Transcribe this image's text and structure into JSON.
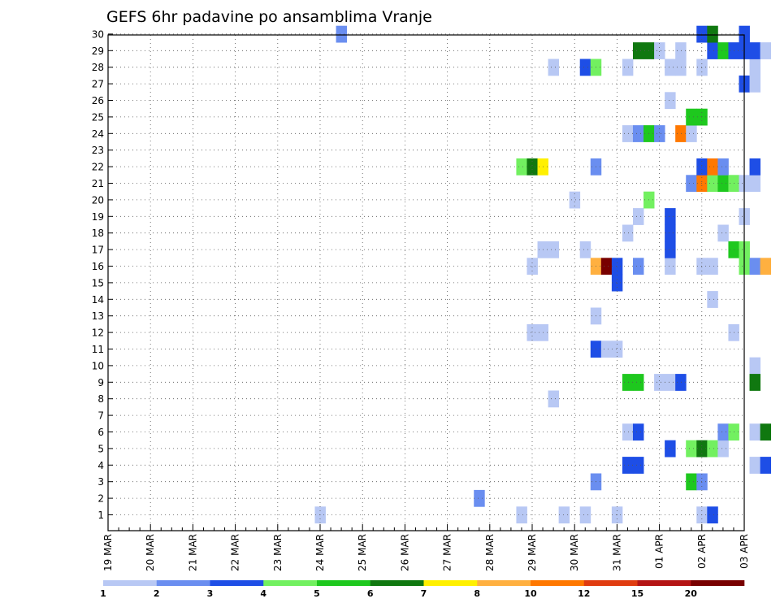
{
  "chart_data": {
    "type": "heatmap",
    "title": "GEFS 6hr padavine po ansamblima Vranje",
    "xlabel": "",
    "ylabel": "",
    "x_tick_labels": [
      "19 MAR",
      "20 MAR",
      "21 MAR",
      "22 MAR",
      "23 MAR",
      "24 MAR",
      "25 MAR",
      "26 MAR",
      "27 MAR",
      "28 MAR",
      "29 MAR",
      "30 MAR",
      "31 MAR",
      "01 APR",
      "02 APR",
      "03 APR"
    ],
    "y_range": [
      1,
      30
    ],
    "grid": true,
    "legend_position": "bottom",
    "legend": {
      "colors": [
        "#b8c8f4",
        "#6a8ef0",
        "#1e4ee6",
        "#72f060",
        "#1ec81e",
        "#107810",
        "#fff000",
        "#ffb040",
        "#ff7800",
        "#e03c10",
        "#b41414",
        "#780000"
      ],
      "labels": [
        "1",
        "2",
        "3",
        "4",
        "5",
        "6",
        "7",
        "8",
        "10",
        "12",
        "15",
        "20"
      ]
    },
    "cells": [
      {
        "d": 5.0,
        "m": 1,
        "c": 1
      },
      {
        "d": 5.5,
        "m": 30,
        "c": 2
      },
      {
        "d": 8.75,
        "m": 2,
        "c": 2
      },
      {
        "d": 9.75,
        "m": 1,
        "c": 1
      },
      {
        "d": 10.0,
        "m": 12,
        "c": 1
      },
      {
        "d": 10.25,
        "m": 12,
        "c": 1
      },
      {
        "d": 10.25,
        "m": 17,
        "c": 1
      },
      {
        "d": 10.5,
        "m": 17,
        "c": 1
      },
      {
        "d": 10.0,
        "m": 16,
        "c": 1
      },
      {
        "d": 9.75,
        "m": 22,
        "c": 4
      },
      {
        "d": 10.0,
        "m": 22,
        "c": 6
      },
      {
        "d": 10.25,
        "m": 22,
        "c": 7
      },
      {
        "d": 10.5,
        "m": 8,
        "c": 1
      },
      {
        "d": 10.5,
        "m": 28,
        "c": 1
      },
      {
        "d": 10.75,
        "m": 1,
        "c": 1
      },
      {
        "d": 11.0,
        "m": 20,
        "c": 1
      },
      {
        "d": 11.25,
        "m": 1,
        "c": 1
      },
      {
        "d": 11.25,
        "m": 17,
        "c": 1
      },
      {
        "d": 11.25,
        "m": 28,
        "c": 3
      },
      {
        "d": 11.5,
        "m": 3,
        "c": 2
      },
      {
        "d": 11.5,
        "m": 11,
        "c": 3
      },
      {
        "d": 11.5,
        "m": 13,
        "c": 1
      },
      {
        "d": 11.5,
        "m": 22,
        "c": 2
      },
      {
        "d": 11.5,
        "m": 28,
        "c": 4
      },
      {
        "d": 11.5,
        "m": 16,
        "c": 8
      },
      {
        "d": 11.75,
        "m": 11,
        "c": 1
      },
      {
        "d": 11.75,
        "m": 16,
        "c": 12
      },
      {
        "d": 12.0,
        "m": 1,
        "c": 1
      },
      {
        "d": 12.0,
        "m": 11,
        "c": 1
      },
      {
        "d": 12.0,
        "m": 15,
        "c": 3
      },
      {
        "d": 12.0,
        "m": 16,
        "c": 3
      },
      {
        "d": 12.25,
        "m": 4,
        "c": 3
      },
      {
        "d": 12.25,
        "m": 6,
        "c": 1
      },
      {
        "d": 12.25,
        "m": 9,
        "c": 5
      },
      {
        "d": 12.25,
        "m": 18,
        "c": 1
      },
      {
        "d": 12.25,
        "m": 24,
        "c": 1
      },
      {
        "d": 12.25,
        "m": 28,
        "c": 1
      },
      {
        "d": 12.5,
        "m": 4,
        "c": 3
      },
      {
        "d": 12.5,
        "m": 6,
        "c": 3
      },
      {
        "d": 12.5,
        "m": 9,
        "c": 5
      },
      {
        "d": 12.5,
        "m": 16,
        "c": 2
      },
      {
        "d": 12.5,
        "m": 19,
        "c": 1
      },
      {
        "d": 12.5,
        "m": 24,
        "c": 2
      },
      {
        "d": 12.5,
        "m": 29,
        "c": 6
      },
      {
        "d": 12.75,
        "m": 20,
        "c": 4
      },
      {
        "d": 12.75,
        "m": 24,
        "c": 5
      },
      {
        "d": 12.75,
        "m": 29,
        "c": 6
      },
      {
        "d": 13.0,
        "m": 9,
        "c": 1
      },
      {
        "d": 13.0,
        "m": 24,
        "c": 2
      },
      {
        "d": 13.0,
        "m": 29,
        "c": 1
      },
      {
        "d": 13.25,
        "m": 5,
        "c": 3
      },
      {
        "d": 13.25,
        "m": 9,
        "c": 1
      },
      {
        "d": 13.25,
        "m": 16,
        "c": 1
      },
      {
        "d": 13.25,
        "m": 17,
        "c": 3
      },
      {
        "d": 13.25,
        "m": 18,
        "c": 3
      },
      {
        "d": 13.25,
        "m": 19,
        "c": 3
      },
      {
        "d": 13.25,
        "m": 26,
        "c": 1
      },
      {
        "d": 13.25,
        "m": 28,
        "c": 1
      },
      {
        "d": 13.5,
        "m": 9,
        "c": 3
      },
      {
        "d": 13.5,
        "m": 24,
        "c": 9
      },
      {
        "d": 13.5,
        "m": 28,
        "c": 1
      },
      {
        "d": 13.5,
        "m": 29,
        "c": 1
      },
      {
        "d": 13.75,
        "m": 3,
        "c": 5
      },
      {
        "d": 13.75,
        "m": 5,
        "c": 4
      },
      {
        "d": 13.75,
        "m": 21,
        "c": 2
      },
      {
        "d": 13.75,
        "m": 24,
        "c": 1
      },
      {
        "d": 13.75,
        "m": 25,
        "c": 5
      },
      {
        "d": 14.0,
        "m": 1,
        "c": 1
      },
      {
        "d": 14.0,
        "m": 3,
        "c": 2
      },
      {
        "d": 14.0,
        "m": 5,
        "c": 6
      },
      {
        "d": 14.0,
        "m": 16,
        "c": 1
      },
      {
        "d": 14.0,
        "m": 21,
        "c": 9
      },
      {
        "d": 14.0,
        "m": 22,
        "c": 3
      },
      {
        "d": 14.0,
        "m": 25,
        "c": 5
      },
      {
        "d": 14.0,
        "m": 28,
        "c": 1
      },
      {
        "d": 14.0,
        "m": 30,
        "c": 3
      },
      {
        "d": 14.25,
        "m": 1,
        "c": 3
      },
      {
        "d": 14.25,
        "m": 5,
        "c": 4
      },
      {
        "d": 14.25,
        "m": 14,
        "c": 1
      },
      {
        "d": 14.25,
        "m": 16,
        "c": 1
      },
      {
        "d": 14.25,
        "m": 21,
        "c": 4
      },
      {
        "d": 14.25,
        "m": 22,
        "c": 9
      },
      {
        "d": 14.25,
        "m": 29,
        "c": 3
      },
      {
        "d": 14.25,
        "m": 30,
        "c": 6
      },
      {
        "d": 14.5,
        "m": 5,
        "c": 1
      },
      {
        "d": 14.5,
        "m": 6,
        "c": 2
      },
      {
        "d": 14.5,
        "m": 18,
        "c": 1
      },
      {
        "d": 14.5,
        "m": 21,
        "c": 5
      },
      {
        "d": 14.5,
        "m": 22,
        "c": 2
      },
      {
        "d": 14.5,
        "m": 29,
        "c": 5
      },
      {
        "d": 14.75,
        "m": 6,
        "c": 4
      },
      {
        "d": 14.75,
        "m": 12,
        "c": 1
      },
      {
        "d": 14.75,
        "m": 17,
        "c": 5
      },
      {
        "d": 14.75,
        "m": 21,
        "c": 4
      },
      {
        "d": 14.75,
        "m": 29,
        "c": 3
      },
      {
        "d": 15.0,
        "m": 16,
        "c": 4
      },
      {
        "d": 15.0,
        "m": 17,
        "c": 4
      },
      {
        "d": 15.0,
        "m": 19,
        "c": 1
      },
      {
        "d": 15.0,
        "m": 21,
        "c": 1
      },
      {
        "d": 15.0,
        "m": 27,
        "c": 3
      },
      {
        "d": 15.0,
        "m": 29,
        "c": 3
      },
      {
        "d": 15.0,
        "m": 30,
        "c": 3
      },
      {
        "d": 15.25,
        "m": 4,
        "c": 1
      },
      {
        "d": 15.25,
        "m": 6,
        "c": 1
      },
      {
        "d": 15.25,
        "m": 10,
        "c": 1
      },
      {
        "d": 15.25,
        "m": 16,
        "c": 2
      },
      {
        "d": 15.25,
        "m": 21,
        "c": 1
      },
      {
        "d": 15.25,
        "m": 22,
        "c": 3
      },
      {
        "d": 15.25,
        "m": 27,
        "c": 1
      },
      {
        "d": 15.25,
        "m": 28,
        "c": 1
      },
      {
        "d": 15.25,
        "m": 29,
        "c": 3
      },
      {
        "d": 15.25,
        "m": 9,
        "c": 6
      },
      {
        "d": 15.5,
        "m": 4,
        "c": 3
      },
      {
        "d": 15.5,
        "m": 6,
        "c": 6
      },
      {
        "d": 15.5,
        "m": 16,
        "c": 8
      },
      {
        "d": 15.5,
        "m": 29,
        "c": 1
      }
    ]
  }
}
